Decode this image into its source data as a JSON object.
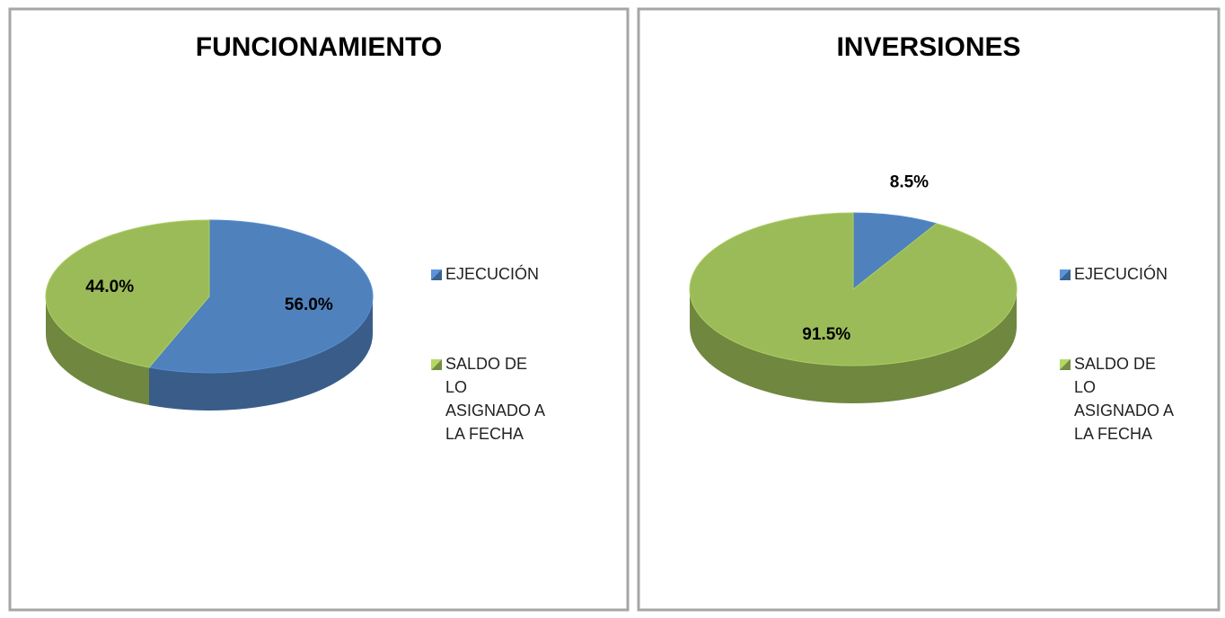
{
  "chart_data": [
    {
      "type": "pie",
      "title": "FUNCIONAMIENTO",
      "categories": [
        "EJECUCIÓN",
        "SALDO DE LO ASIGNADO A LA FECHA"
      ],
      "values": [
        56.0,
        44.0
      ],
      "value_labels": [
        "56.0%",
        "44.0%"
      ],
      "colors": [
        "#4f81bd",
        "#9bbb59"
      ]
    },
    {
      "type": "pie",
      "title": "INVERSIONES",
      "categories": [
        "EJECUCIÓN",
        "SALDO DE LO ASIGNADO A LA FECHA"
      ],
      "values": [
        8.5,
        91.5
      ],
      "value_labels": [
        "8.5%",
        "91.5%"
      ],
      "colors": [
        "#4f81bd",
        "#9bbb59"
      ]
    }
  ]
}
